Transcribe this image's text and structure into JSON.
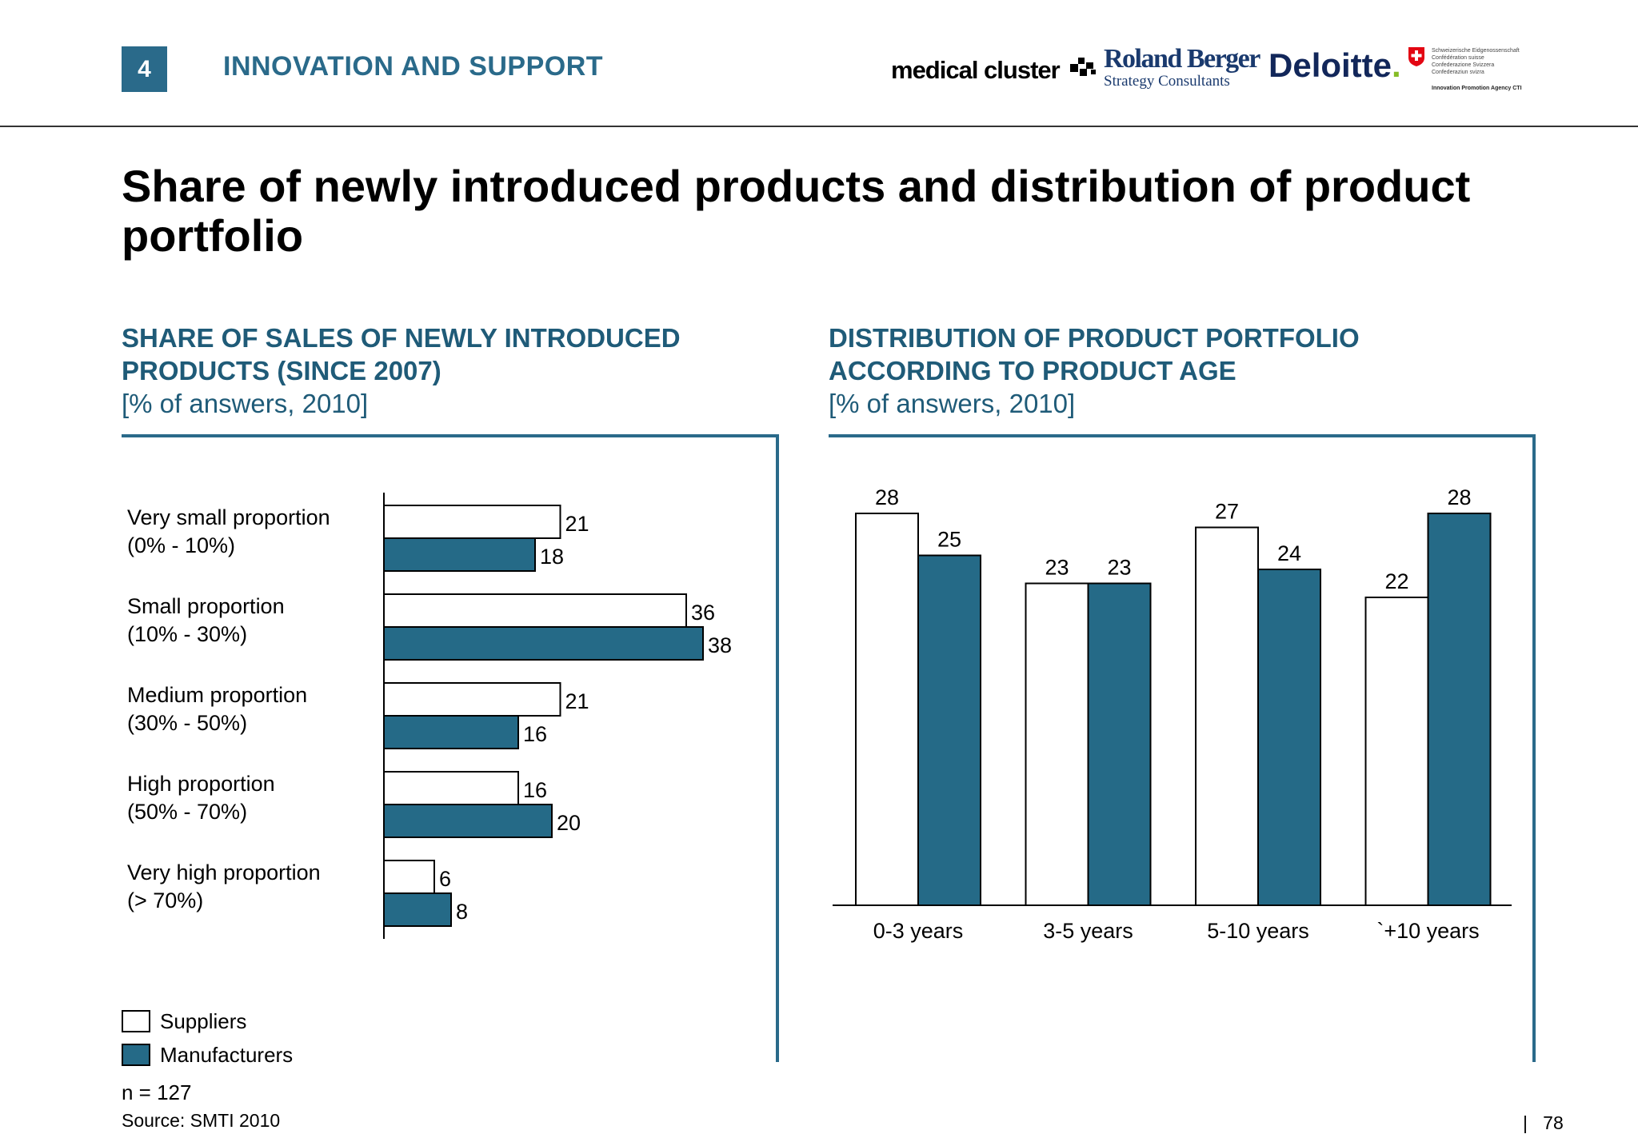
{
  "header": {
    "section_number": "4",
    "section_title": "INNOVATION AND SUPPORT",
    "logos": {
      "medical_cluster": "medical cluster",
      "roland_berger_name": "Roland Berger",
      "roland_berger_sub": "Strategy Consultants",
      "deloitte": "Deloitte",
      "deloitte_dot": ".",
      "swiss_lines": [
        "Schweizerische Eidgenossenschaft",
        "Confédération suisse",
        "Confederazione Svizzera",
        "Confederaziun svizra"
      ],
      "swiss_agency": "Innovation Promotion Agency CTI"
    }
  },
  "title": "Share of newly introduced products and distribution of product portfolio",
  "legend": {
    "suppliers": "Suppliers",
    "manufacturers": "Manufacturers"
  },
  "footer": {
    "sample": "n = 127",
    "source": "Source:  SMTI 2010",
    "separator": "|",
    "page": "78"
  },
  "colors": {
    "accent": "#2a6a8a",
    "suppliers": "#ffffff",
    "manufacturers": "#256a87",
    "heading": "#1f5b78"
  },
  "chart_data": [
    {
      "type": "bar",
      "orientation": "horizontal",
      "title": "SHARE OF SALES OF NEWLY INTRODUCED PRODUCTS (SINCE 2007)",
      "unit": "[% of answers, 2010]",
      "categories": [
        [
          "Very small proportion",
          "(0% - 10%)"
        ],
        [
          "Small proportion",
          "(10% - 30%)"
        ],
        [
          "Medium proportion",
          "(30% - 50%)"
        ],
        [
          "High proportion",
          "(50% - 70%)"
        ],
        [
          "Very high proportion",
          "(> 70%)"
        ]
      ],
      "series": [
        {
          "name": "Suppliers",
          "values": [
            21,
            36,
            21,
            16,
            6
          ]
        },
        {
          "name": "Manufacturers",
          "values": [
            18,
            38,
            16,
            20,
            8
          ]
        }
      ],
      "xlim": [
        0,
        38
      ],
      "grid": false,
      "legend": "bottom-left"
    },
    {
      "type": "bar",
      "orientation": "vertical",
      "title": "DISTRIBUTION OF PRODUCT PORTFOLIO ACCORDING TO PRODUCT AGE",
      "unit": "[% of answers, 2010]",
      "categories": [
        "0-3 years",
        "3-5 years",
        "5-10 years",
        "`+10 years"
      ],
      "series": [
        {
          "name": "Suppliers",
          "values": [
            28,
            23,
            27,
            22
          ]
        },
        {
          "name": "Manufacturers",
          "values": [
            25,
            23,
            24,
            28
          ]
        }
      ],
      "ylim": [
        0,
        28
      ],
      "grid": false,
      "legend": "bottom-left"
    }
  ]
}
